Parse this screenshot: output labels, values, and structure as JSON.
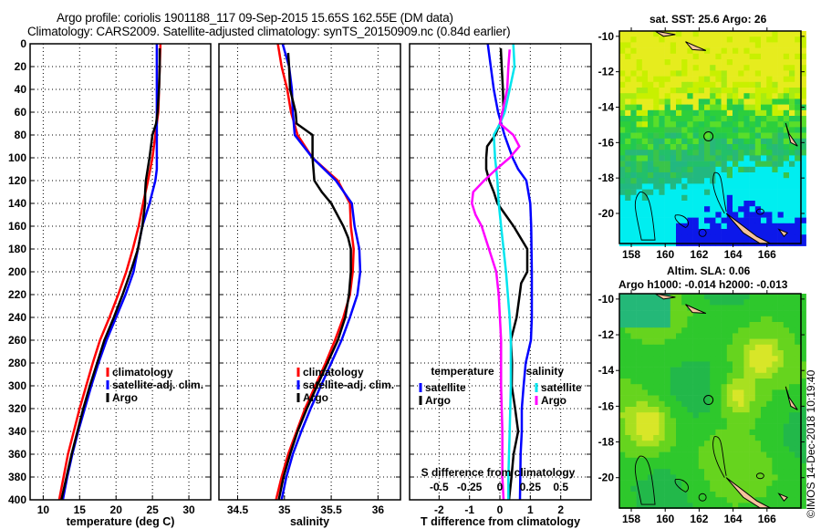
{
  "header": {
    "title_line1": "Argo profile: coriolis 1901188_117 09-Sep-2015 15.65S 162.55E (DM data)",
    "title_line2": "Climatology: CARS2009. Satellite-adjusted climatology: synTS_20150909.nc (0.84d earlier)"
  },
  "colors": {
    "climatology": "#ff0000",
    "satellite": "#0000ff",
    "argo": "#000000",
    "salinity_satellite": "#00e5ee",
    "salinity_argo": "#ff00ff",
    "land": "#f5c39c"
  },
  "chart_data": [
    {
      "type": "line",
      "name": "temperature-profile",
      "xlabel": "temperature (deg C)",
      "ylabel": "",
      "xlim": [
        8.2,
        33
      ],
      "ylim": [
        400,
        0
      ],
      "xticks": [
        10,
        15,
        20,
        25,
        30
      ],
      "yticks": [
        0,
        20,
        40,
        60,
        80,
        100,
        120,
        140,
        160,
        180,
        200,
        220,
        240,
        260,
        280,
        300,
        320,
        340,
        360,
        380,
        400
      ],
      "grid": true,
      "legend": {
        "position": "lower-middle",
        "labels": [
          "climatology",
          "satellite-adj. clim.",
          "Argo"
        ]
      },
      "series": [
        {
          "name": "climatology",
          "color": "#ff0000",
          "depth": [
            0,
            40,
            60,
            80,
            100,
            120,
            140,
            160,
            180,
            200,
            220,
            240,
            260,
            280,
            300,
            320,
            340,
            360,
            380,
            400
          ],
          "values": [
            26.1,
            25.9,
            25.8,
            25.4,
            25.0,
            24.4,
            23.7,
            23.1,
            22.3,
            21.4,
            20.3,
            19.1,
            17.8,
            16.8,
            15.9,
            15.0,
            14.2,
            13.4,
            12.8,
            12.2
          ]
        },
        {
          "name": "satellite-adj. clim.",
          "color": "#0000ff",
          "depth": [
            0,
            40,
            60,
            80,
            100,
            110,
            120,
            140,
            160,
            180,
            200,
            220,
            240,
            260,
            280,
            300,
            320,
            340,
            360,
            380,
            400
          ],
          "values": [
            25.6,
            25.6,
            25.6,
            25.6,
            25.6,
            25.6,
            25.4,
            24.6,
            23.6,
            23.0,
            22.4,
            21.3,
            20.0,
            18.7,
            17.6,
            16.6,
            15.7,
            14.8,
            14.0,
            13.3,
            12.7
          ]
        },
        {
          "name": "Argo",
          "color": "#000000",
          "depth": [
            4,
            20,
            40,
            60,
            70,
            80,
            100,
            120,
            130,
            140,
            160,
            180,
            200,
            220,
            240,
            260,
            280,
            300,
            320,
            340,
            360,
            380,
            400
          ],
          "values": [
            26.0,
            26.0,
            25.9,
            25.7,
            25.5,
            25.0,
            24.6,
            24.1,
            24.0,
            24.0,
            23.6,
            23.0,
            22.0,
            20.9,
            19.7,
            18.4,
            17.4,
            16.4,
            15.5,
            14.7,
            13.9,
            13.2,
            12.5
          ]
        }
      ]
    },
    {
      "type": "line",
      "name": "salinity-profile",
      "xlabel": "salinity",
      "xlim": [
        34.3,
        36.24
      ],
      "ylim": [
        400,
        0
      ],
      "xticks": [
        34.5,
        35,
        35.5,
        36
      ],
      "xtick_labels": [
        "34.5",
        "35",
        "35.5",
        "36"
      ],
      "grid": true,
      "legend": {
        "position": "lower-middle",
        "labels": [
          "climatology",
          "satellite-adj. clim.",
          "Argo"
        ]
      },
      "series": [
        {
          "name": "climatology",
          "color": "#ff0000",
          "depth": [
            0,
            20,
            40,
            60,
            80,
            100,
            120,
            140,
            160,
            180,
            200,
            220,
            240,
            260,
            280,
            300,
            320,
            340,
            360,
            380,
            400
          ],
          "values": [
            34.93,
            34.97,
            35.03,
            35.07,
            35.14,
            35.3,
            35.57,
            35.7,
            35.71,
            35.74,
            35.73,
            35.7,
            35.63,
            35.54,
            35.44,
            35.33,
            35.22,
            35.13,
            35.04,
            34.97,
            34.91
          ]
        },
        {
          "name": "satellite-adj. clim.",
          "color": "#0000ff",
          "depth": [
            0,
            20,
            40,
            60,
            80,
            100,
            120,
            140,
            160,
            180,
            200,
            220,
            240,
            260,
            280,
            300,
            320,
            340,
            360,
            380,
            400
          ],
          "values": [
            34.98,
            35.05,
            35.08,
            35.09,
            35.11,
            35.3,
            35.55,
            35.72,
            35.75,
            35.8,
            35.81,
            35.78,
            35.7,
            35.61,
            35.5,
            35.39,
            35.28,
            35.18,
            35.09,
            35.02,
            34.97
          ]
        },
        {
          "name": "Argo",
          "color": "#000000",
          "depth": [
            8,
            20,
            40,
            60,
            70,
            80,
            90,
            100,
            120,
            130,
            140,
            160,
            170,
            180,
            200,
            220,
            240,
            260,
            280,
            300,
            320,
            340,
            360,
            380,
            400
          ],
          "values": [
            35.04,
            35.05,
            35.06,
            35.12,
            35.13,
            35.3,
            35.3,
            35.3,
            35.32,
            35.4,
            35.5,
            35.63,
            35.68,
            35.71,
            35.71,
            35.69,
            35.65,
            35.57,
            35.46,
            35.35,
            35.24,
            35.14,
            35.06,
            34.99,
            34.94
          ]
        }
      ]
    },
    {
      "type": "line",
      "name": "difference-profile",
      "xlabel": "T difference from climatology",
      "xlabel_secondary": "S difference from climatology",
      "xlim": [
        -2.97,
        3.0
      ],
      "xticks": [
        -2,
        -1,
        0,
        1,
        2
      ],
      "xtick_labels": [
        "-2",
        "-1",
        "0",
        "1",
        "2"
      ],
      "secondary_xticks_labels": [
        "-0.5",
        "-0.25",
        "0",
        "0.25",
        "0.5"
      ],
      "ylim": [
        400,
        0
      ],
      "grid": true,
      "legend": {
        "position": "lower",
        "temperature_title": "temperature",
        "salinity_title": "salinity",
        "labels": [
          "satellite",
          "Argo",
          "satellite",
          "Argo"
        ]
      },
      "series": [
        {
          "name": "temperature satellite",
          "units": "degC",
          "color": "#0000ff",
          "depth": [
            0,
            20,
            40,
            60,
            80,
            100,
            110,
            120,
            140,
            160,
            200,
            240,
            260,
            280,
            300,
            320,
            340,
            360,
            400
          ],
          "values": [
            -0.4,
            -0.3,
            -0.2,
            -0.06,
            0.15,
            0.42,
            0.6,
            0.87,
            1.0,
            1.03,
            1.05,
            1.05,
            1.02,
            0.85,
            0.78,
            0.72,
            0.72,
            0.68,
            0.66
          ]
        },
        {
          "name": "temperature Argo",
          "units": "degC",
          "color": "#000000",
          "depth": [
            4,
            20,
            40,
            60,
            70,
            80,
            90,
            100,
            110,
            120,
            130,
            140,
            160,
            180,
            200,
            210,
            220,
            240,
            260,
            280,
            300,
            320,
            340,
            360,
            380,
            400
          ],
          "values": [
            0.03,
            0.06,
            0.1,
            0.12,
            0.0,
            -0.15,
            -0.42,
            -0.45,
            -0.45,
            -0.35,
            -0.2,
            -0.08,
            0.45,
            0.9,
            0.9,
            0.7,
            0.65,
            0.55,
            0.36,
            0.4,
            0.39,
            0.5,
            0.6,
            0.45,
            0.38,
            0.3
          ]
        },
        {
          "name": "salinity satellite",
          "units": "psu",
          "color": "#00e5ee",
          "depth": [
            0,
            20,
            40,
            60,
            70,
            80,
            100,
            120,
            140,
            160,
            180,
            200,
            240,
            260,
            300,
            340,
            380,
            400
          ],
          "values": [
            0.11,
            0.12,
            0.08,
            0.04,
            0.0,
            -0.05,
            -0.04,
            -0.02,
            -0.01,
            0.01,
            0.03,
            0.05,
            0.08,
            0.09,
            0.09,
            0.08,
            0.07,
            0.07
          ]
        },
        {
          "name": "salinity Argo",
          "units": "psu",
          "color": "#ff00ff",
          "depth": [
            5,
            20,
            40,
            60,
            70,
            80,
            90,
            100,
            110,
            120,
            130,
            140,
            150,
            160,
            170,
            180,
            200,
            220,
            240,
            260,
            280,
            300,
            340,
            380,
            400
          ],
          "values": [
            0.08,
            0.07,
            0.06,
            0.02,
            0.0,
            0.11,
            0.16,
            0.08,
            -0.03,
            -0.13,
            -0.22,
            -0.23,
            -0.2,
            -0.15,
            -0.12,
            -0.09,
            -0.03,
            -0.01,
            0.0,
            0.01,
            0.01,
            0.01,
            0.02,
            0.02,
            0.03
          ]
        }
      ]
    },
    {
      "type": "heatmap",
      "name": "sst-map",
      "title": "sat. SST: 25.6 Argo: 26",
      "xticks": [
        158,
        160,
        162,
        164,
        166
      ],
      "yticks": [
        -10,
        -12,
        -14,
        -16,
        -18,
        -20
      ],
      "xlim": [
        157.3,
        168
      ],
      "ylim": [
        -21.7,
        -9.7
      ],
      "profile_location": {
        "lon": 162.55,
        "lat": -15.65
      }
    },
    {
      "type": "heatmap",
      "name": "sla-map",
      "title": "Altim. SLA: 0.06",
      "subtitle": "Argo h1000: -0.014 h2000: -0.013",
      "xticks": [
        158,
        160,
        162,
        164,
        166
      ],
      "yticks": [
        -10,
        -12,
        -14,
        -16,
        -18,
        -20
      ],
      "xlim": [
        157.3,
        168
      ],
      "ylim": [
        -21.7,
        -9.7
      ],
      "profile_location": {
        "lon": 162.55,
        "lat": -15.65
      }
    }
  ],
  "footer": {
    "copyright": "©IMOS 14-Dec-2018 10:19:40"
  }
}
